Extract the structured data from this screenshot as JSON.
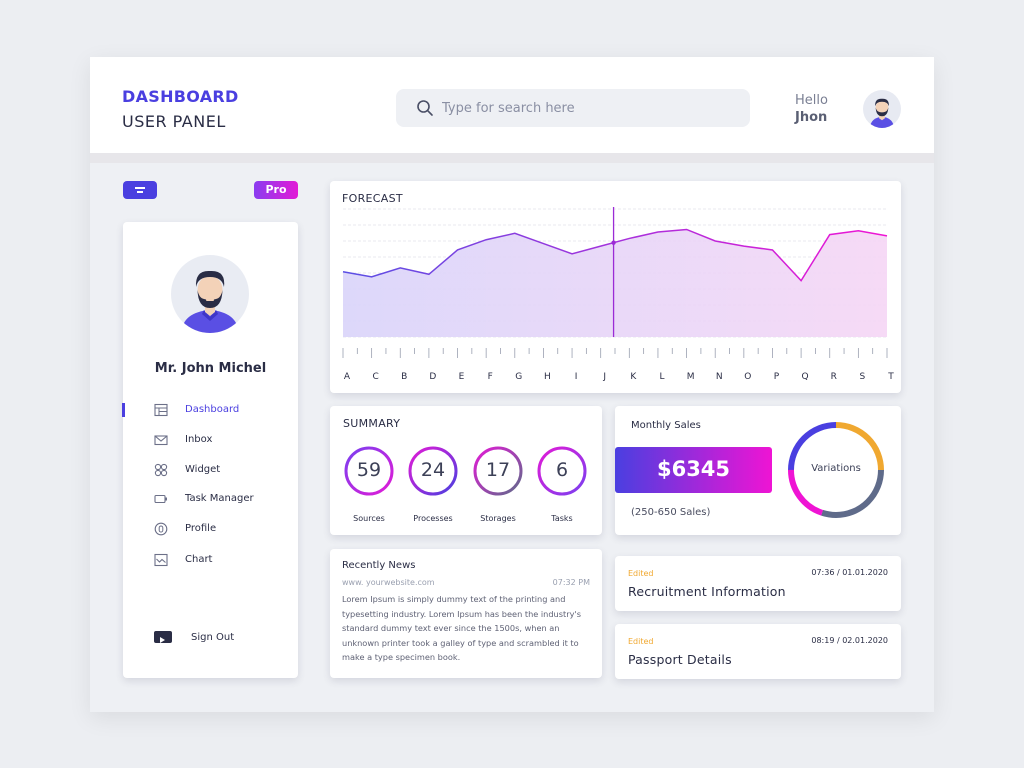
{
  "header": {
    "title_line1": "DASHBOARD",
    "title_line2": "USER PANEL",
    "greeting": "Hello",
    "username": "Jhon"
  },
  "search": {
    "placeholder": "Type for search here",
    "icon": "search-icon"
  },
  "sidebar": {
    "pro_badge": "Pro",
    "user_name": "Mr. John Michel",
    "items": [
      {
        "label": "Dashboard",
        "icon": "dashboard-icon",
        "active": true
      },
      {
        "label": "Inbox",
        "icon": "mail-icon"
      },
      {
        "label": "Widget",
        "icon": "widget-icon"
      },
      {
        "label": "Task Manager",
        "icon": "task-icon"
      },
      {
        "label": "Profile",
        "icon": "profile-icon"
      },
      {
        "label": "Chart",
        "icon": "chart-icon"
      }
    ],
    "sign_out": "Sign Out"
  },
  "forecast": {
    "title": "FORECAST"
  },
  "summary": {
    "title": "SUMMARY",
    "stats": [
      {
        "value": "59",
        "label": "Sources"
      },
      {
        "value": "24",
        "label": "Processes"
      },
      {
        "value": "17",
        "label": "Storages"
      },
      {
        "value": "6",
        "label": "Tasks"
      }
    ]
  },
  "sales": {
    "title": "Monthly Sales",
    "amount": "$6345",
    "range": "(250-650 Sales)",
    "donut_label": "Variations"
  },
  "news": {
    "title": "Recently News",
    "site": "www. yourwebsite.com",
    "time": "07:32 PM",
    "body": "Lorem Ipsum is simply dummy text of the printing and typesetting industry. Lorem Ipsum has been the industry's standard dummy text ever since the 1500s, when an unknown printer took a galley of type and scrambled it to make a type specimen book."
  },
  "records": [
    {
      "status": "Edited",
      "stamp": "07:36 / 01.01.2020",
      "title": "Recruitment Information"
    },
    {
      "status": "Edited",
      "stamp": "08:19 / 02.01.2020",
      "title": "Passport Details"
    }
  ],
  "colors": {
    "accent": "#4a3fe0",
    "magenta": "#ef14d4",
    "orange": "#f0a830",
    "slate": "#5f6b8a"
  },
  "chart_data": {
    "type": "area",
    "title": "FORECAST",
    "categories": [
      "A",
      "C",
      "B",
      "D",
      "E",
      "F",
      "G",
      "H",
      "I",
      "J",
      "K",
      "L",
      "M",
      "N",
      "O",
      "P",
      "Q",
      "R",
      "S",
      "T"
    ],
    "series": [
      {
        "values": [
          5.1,
          4.7,
          5.4,
          4.9,
          6.8,
          7.6,
          8.1,
          7.3,
          6.5,
          7.1,
          7.7,
          8.2,
          8.4,
          7.5,
          7.1,
          6.8,
          4.4,
          8.0,
          8.3,
          7.9
        ]
      }
    ],
    "ylim": [
      0,
      10
    ],
    "grid": true,
    "marker_category": "J"
  }
}
